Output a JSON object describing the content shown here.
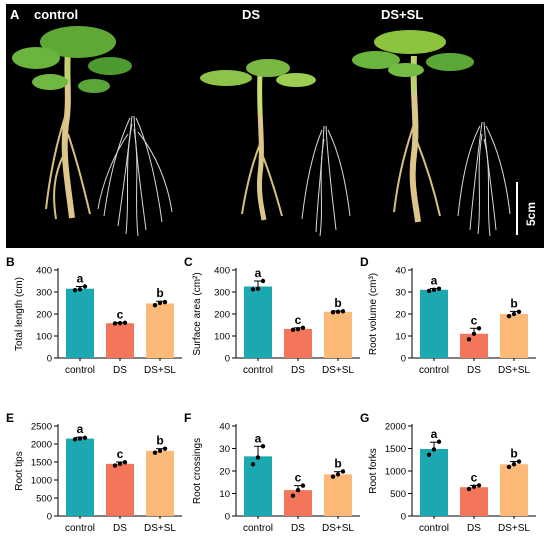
{
  "photo_panel": {
    "panel_letter": "A",
    "labels": [
      "control",
      "DS",
      "DS+SL"
    ],
    "scale_bar_label": "5cm"
  },
  "chart_data": [
    {
      "panel": "B",
      "type": "bar",
      "categories": [
        "control",
        "DS",
        "DS+SL"
      ],
      "values": [
        315,
        158,
        248
      ],
      "errors": [
        10,
        3,
        10
      ],
      "points": [
        [
          308,
          312,
          325
        ],
        [
          157,
          158,
          160
        ],
        [
          240,
          250,
          254
        ]
      ],
      "letters": [
        "a",
        "c",
        "b"
      ],
      "ylabel": "Total length (cm)",
      "ylim": [
        0,
        400
      ],
      "yticks": [
        0,
        100,
        200,
        300,
        400
      ]
    },
    {
      "panel": "C",
      "type": "bar",
      "categories": [
        "control",
        "DS",
        "DS+SL"
      ],
      "values": [
        325,
        132,
        210
      ],
      "errors": [
        25,
        5,
        4
      ],
      "points": [
        [
          312,
          315,
          350
        ],
        [
          128,
          131,
          137
        ],
        [
          208,
          210,
          212
        ]
      ],
      "letters": [
        "a",
        "c",
        "b"
      ],
      "ylabel": "Surface area (cm²)",
      "ylim": [
        0,
        400
      ],
      "yticks": [
        0,
        100,
        200,
        300,
        400
      ]
    },
    {
      "panel": "D",
      "type": "bar",
      "categories": [
        "control",
        "DS",
        "DS+SL"
      ],
      "values": [
        31,
        11,
        20
      ],
      "errors": [
        0.6,
        2.5,
        1.2
      ],
      "points": [
        [
          30.5,
          31,
          31.5
        ],
        [
          8.5,
          11,
          13.5
        ],
        [
          19,
          20,
          21
        ]
      ],
      "letters": [
        "a",
        "c",
        "b"
      ],
      "ylabel": "Root volume (cm³)",
      "ylim": [
        0,
        40
      ],
      "yticks": [
        0,
        10,
        20,
        30,
        40
      ]
    },
    {
      "panel": "E",
      "type": "bar",
      "categories": [
        "control",
        "DS",
        "DS+SL"
      ],
      "values": [
        2150,
        1450,
        1810
      ],
      "errors": [
        40,
        50,
        60
      ],
      "points": [
        [
          2130,
          2150,
          2170
        ],
        [
          1400,
          1450,
          1490
        ],
        [
          1760,
          1810,
          1870
        ]
      ],
      "letters": [
        "a",
        "c",
        "b"
      ],
      "ylabel": "Root tips",
      "ylim": [
        0,
        2500
      ],
      "yticks": [
        0,
        500,
        1000,
        1500,
        2000,
        2500
      ]
    },
    {
      "panel": "F",
      "type": "bar",
      "categories": [
        "control",
        "DS",
        "DS+SL"
      ],
      "values": [
        26.5,
        11.5,
        18.5
      ],
      "errors": [
        4.5,
        2,
        1.2
      ],
      "points": [
        [
          23,
          26,
          31
        ],
        [
          9,
          11.5,
          13.5
        ],
        [
          17.5,
          18.5,
          19.8
        ]
      ],
      "letters": [
        "a",
        "c",
        "b"
      ],
      "ylabel": "Root crossings",
      "ylim": [
        0,
        40
      ],
      "yticks": [
        0,
        10,
        20,
        30,
        40
      ]
    },
    {
      "panel": "G",
      "type": "bar",
      "categories": [
        "control",
        "DS",
        "DS+SL"
      ],
      "values": [
        1490,
        640,
        1150
      ],
      "errors": [
        150,
        40,
        60
      ],
      "points": [
        [
          1360,
          1480,
          1650
        ],
        [
          600,
          650,
          680
        ],
        [
          1090,
          1150,
          1210
        ]
      ],
      "letters": [
        "a",
        "c",
        "b"
      ],
      "ylabel": "Root forks",
      "ylim": [
        0,
        2000
      ],
      "yticks": [
        0,
        500,
        1000,
        1500,
        2000
      ]
    }
  ],
  "colors": {
    "control": "#1ba8b0",
    "DS": "#f4765a",
    "DS+SL": "#fdb978",
    "photo_background": "#000000"
  }
}
